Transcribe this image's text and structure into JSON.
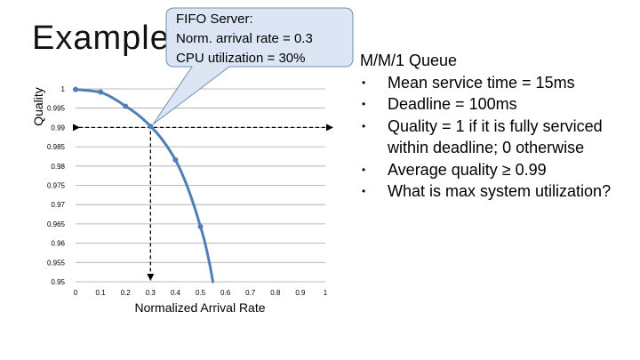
{
  "slide": {
    "title": "Example",
    "callout_lines": [
      "FIFO Server:",
      "Norm. arrival rate = 0.3",
      "CPU utilization = 30%"
    ],
    "queue_title": "M/M/1 Queue",
    "bullets": [
      {
        "lines": [
          "Mean service time = 15ms"
        ]
      },
      {
        "lines": [
          "Deadline = 100ms"
        ]
      },
      {
        "lines": [
          "Quality = 1 if it is fully serviced",
          "within deadline; 0 otherwise"
        ]
      },
      {
        "lines": [
          "Average quality ≥ 0.99"
        ]
      },
      {
        "lines": [
          "What is max system utilization?"
        ]
      }
    ]
  },
  "chart_data": {
    "type": "line",
    "title": "",
    "xlabel": "Normalized Arrival Rate",
    "ylabel": "Quality",
    "xlim": [
      0,
      1
    ],
    "ylim": [
      0.95,
      1
    ],
    "x_ticks": [
      "0",
      "0.1",
      "0.2",
      "0.3",
      "0.4",
      "0.5",
      "0.6",
      "0.7",
      "0.8",
      "0.9",
      "1"
    ],
    "y_ticks": [
      "1",
      "0.995",
      "0.99",
      "0.985",
      "0.98",
      "0.975",
      "0.97",
      "0.965",
      "0.96",
      "0.955",
      "0.95"
    ],
    "grid": true,
    "series": [
      {
        "name": "Quality",
        "x": [
          0,
          0.1,
          0.2,
          0.3,
          0.4,
          0.5,
          0.55
        ],
        "y": [
          0.99985,
          0.9992,
          0.9955,
          0.9903,
          0.9816,
          0.9643,
          0.95
        ]
      }
    ],
    "reference": {
      "x": 0.3,
      "y": 0.99
    },
    "colors": {
      "line": "#4f7fb8",
      "callout_fill": "#dbe5f3",
      "callout_stroke": "#6f8fb5"
    }
  }
}
